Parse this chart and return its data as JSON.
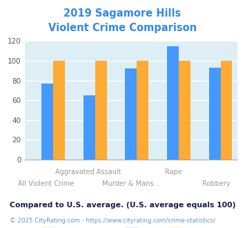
{
  "title_line1": "2019 Sagamore Hills",
  "title_line2": "Violent Crime Comparison",
  "title_color": "#3388ee",
  "categories_top": [
    "",
    "Aggravated Assault",
    "",
    "Rape",
    ""
  ],
  "categories_bot": [
    "All Violent Crime",
    "",
    "Murder & Mans...",
    "",
    "Robbery"
  ],
  "series": {
    "Sagamore Hills": [
      0,
      0,
      0,
      0,
      0
    ],
    "Ohio": [
      77,
      65,
      92,
      115,
      93
    ],
    "National": [
      100,
      100,
      100,
      100,
      100
    ]
  },
  "colors": {
    "Sagamore Hills": "#99cc33",
    "Ohio": "#4499ff",
    "National": "#ffaa33"
  },
  "ylim": [
    0,
    120
  ],
  "yticks": [
    0,
    20,
    40,
    60,
    80,
    100,
    120
  ],
  "background_color": "#ddeef5",
  "footer_text": "Compared to U.S. average. (U.S. average equals 100)",
  "footer_color": "#1a1a4e",
  "credit_text": "© 2025 CityRating.com - https://www.cityrating.com/crime-statistics/",
  "credit_color": "#6699bb",
  "xlabel_top_color": "#999999",
  "xlabel_bot_color": "#999999",
  "grid_color": "#ffffff"
}
